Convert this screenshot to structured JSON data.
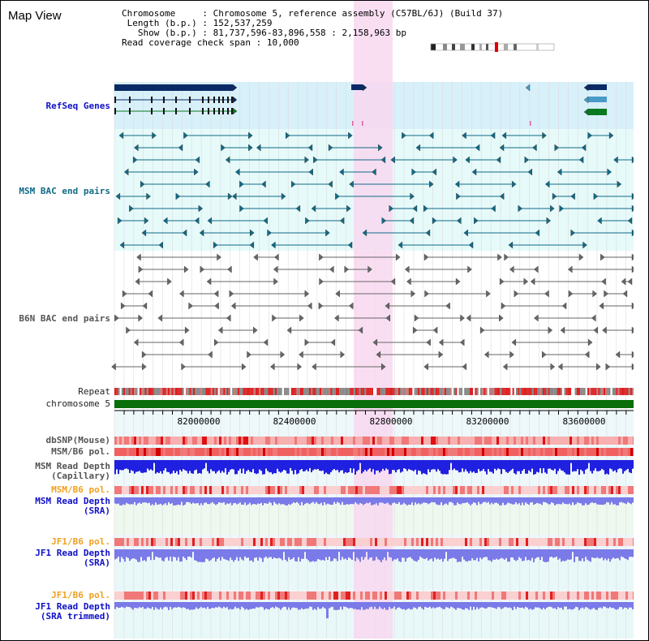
{
  "view_title": "Map View",
  "info": {
    "chromosome_key": "Chromosome",
    "chromosome_val": "Chromosome 5, reference assembly (C57BL/6J) (Build 37)",
    "length_key": "Length (b.p.)",
    "length_val": "152,537,259",
    "show_key": "Show (b.p.)",
    "show_val": "81,737,596-83,896,558 : 2,158,963 bp",
    "span_key": "Read coverage check span",
    "span_val": "10,000"
  },
  "tracks": {
    "refseq": "RefSeq Genes",
    "msm_bac": "MSM BAC end pairs",
    "b6n_bac": "B6N BAC end pairs",
    "repeat": "Repeat",
    "chromosome": "chromosome 5",
    "dbsnp": "dbSNP(Mouse)",
    "msm_b6_pol_1": "MSM/B6 pol.",
    "msm_read_depth_cap": "MSM Read Depth\n(Capillary)",
    "msm_b6_pol_2": "MSM/B6 pol.",
    "msm_read_depth_sra": "MSM Read Depth\n(SRA)",
    "jf1_b6_pol_1": "JF1/B6 pol.",
    "jf1_read_depth_sra": "JF1 Read Depth\n(SRA)",
    "jf1_b6_pol_2": "JF1/B6 pol.",
    "jf1_read_depth_trim": "JF1 Read Depth\n(SRA trimmed)"
  },
  "axis": {
    "ticks": [
      "82000000",
      "82400000",
      "82800000",
      "83200000",
      "83600000"
    ]
  },
  "colors": {
    "refseq_bg": "#d8f0fa",
    "msm_bg": "#e6fafa",
    "b6n_bg": "#ffffff",
    "highlight": "#f8d8f0",
    "gene_dark": "#0a2a66",
    "gene_mid": "#4a9ac8",
    "gene_green": "#0a7a20",
    "chromosome_bar": "#0a6e0a",
    "msm_pair": "#106a86",
    "b6n_pair": "#666666",
    "read_depth_blue": "#2020e0",
    "sra_blue": "#7a7ae8"
  }
}
